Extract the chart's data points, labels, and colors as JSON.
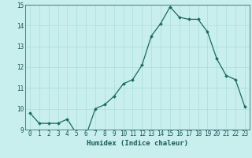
{
  "x": [
    0,
    1,
    2,
    3,
    4,
    5,
    6,
    7,
    8,
    9,
    10,
    11,
    12,
    13,
    14,
    15,
    16,
    17,
    18,
    19,
    20,
    21,
    22,
    23
  ],
  "y": [
    9.8,
    9.3,
    9.3,
    9.3,
    9.5,
    8.8,
    8.7,
    10.0,
    10.2,
    10.6,
    11.2,
    11.4,
    12.1,
    13.5,
    14.1,
    14.9,
    14.4,
    14.3,
    14.3,
    13.7,
    12.4,
    11.6,
    11.4,
    10.1
  ],
  "xlabel": "Humidex (Indice chaleur)",
  "ylim": [
    9,
    15
  ],
  "xlim_min": -0.5,
  "xlim_max": 23.5,
  "yticks": [
    9,
    10,
    11,
    12,
    13,
    14,
    15
  ],
  "xticks": [
    0,
    1,
    2,
    3,
    4,
    5,
    6,
    7,
    8,
    9,
    10,
    11,
    12,
    13,
    14,
    15,
    16,
    17,
    18,
    19,
    20,
    21,
    22,
    23
  ],
  "line_color": "#1a6b5a",
  "marker": "D",
  "marker_size": 2.0,
  "bg_color": "#c8eeee",
  "grid_color": "#aadddd",
  "text_color": "#1a5a5a",
  "tick_fontsize": 5.5,
  "xlabel_fontsize": 6.5,
  "linewidth": 0.9
}
